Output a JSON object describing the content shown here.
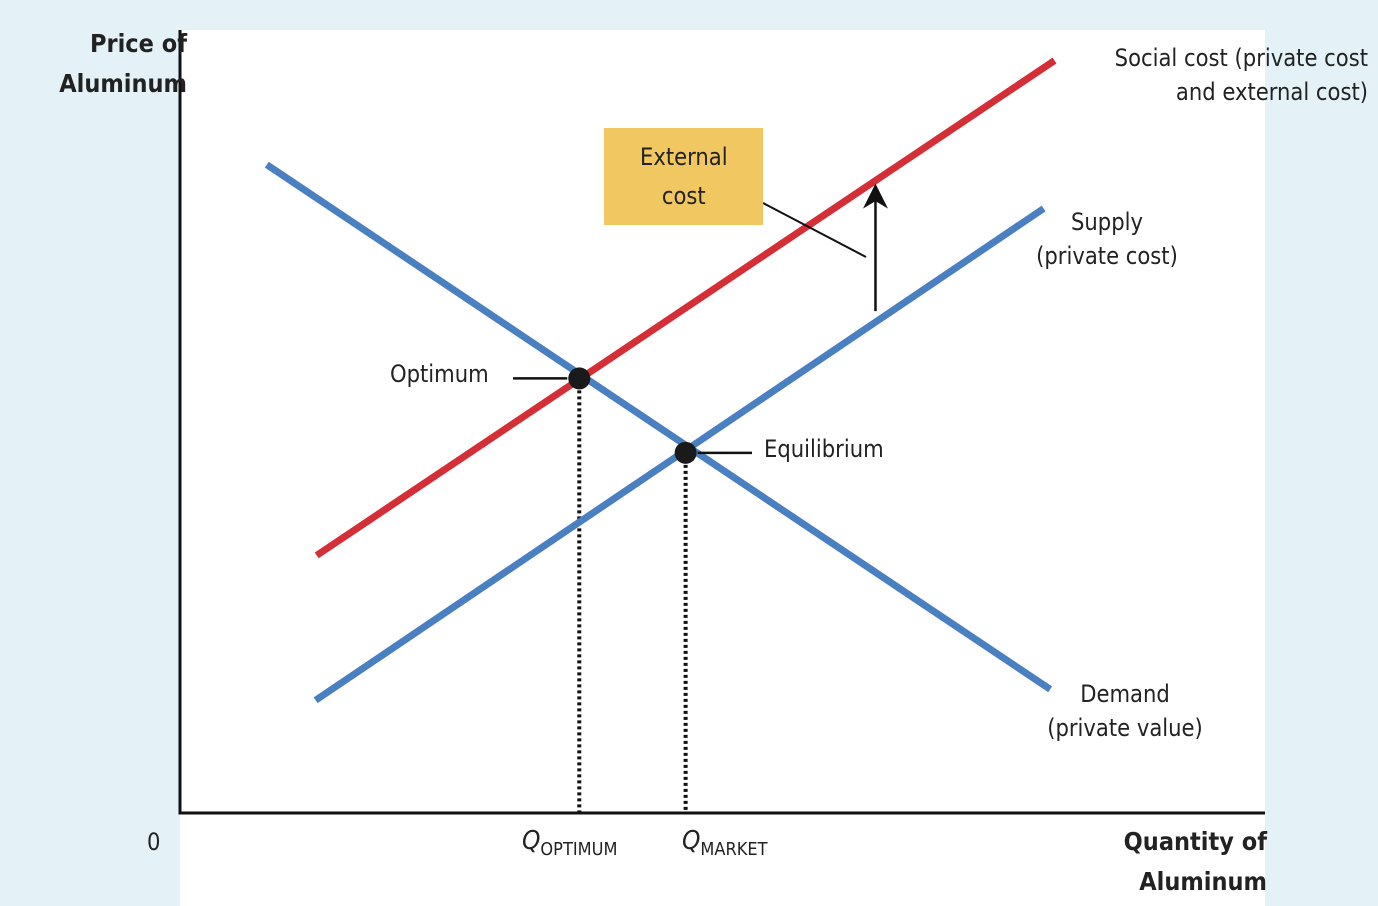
{
  "axes": {
    "y_title_line1": "Price of",
    "y_title_line2": "Aluminum",
    "x_title_line1": "Quantity of",
    "x_title_line2": "Aluminum",
    "origin": "0"
  },
  "labels": {
    "social_cost_line1": "Social cost (private cost",
    "social_cost_line2": "and external cost)",
    "supply_line1": "Supply",
    "supply_line2": "(private cost)",
    "demand_line1": "Demand",
    "demand_line2": "(private value)",
    "external_cost_line1": "External",
    "external_cost_line2": "cost",
    "optimum": "Optimum",
    "equilibrium": "Equilibrium",
    "q_optimum_main": "Q",
    "q_optimum_sub": "OPTIMUM",
    "q_market_main": "Q",
    "q_market_sub": "MARKET"
  },
  "colors": {
    "supply": "#4a7fc1",
    "demand": "#4a7fc1",
    "social_cost": "#d42e37",
    "external_cost_box": "#f0c760",
    "background": "#e4f2f7"
  },
  "chart_data": {
    "type": "line",
    "xlim": [
      0,
      100
    ],
    "ylim": [
      0,
      100
    ],
    "grid": false,
    "series": [
      {
        "name": "Social cost (private cost and external cost)",
        "points": [
          [
            12.6,
            32.9
          ],
          [
            80.6,
            96.1
          ]
        ]
      },
      {
        "name": "Supply",
        "points": [
          [
            12.5,
            14.4
          ],
          [
            79.6,
            77.2
          ]
        ]
      },
      {
        "name": "Demand",
        "points": [
          [
            8.0,
            82.8
          ],
          [
            80.2,
            15.8
          ]
        ]
      }
    ],
    "points": [
      {
        "name": "Optimum",
        "x": 36.8,
        "y": 55.5
      },
      {
        "name": "Equilibrium",
        "x": 46.6,
        "y": 46.0
      }
    ],
    "x_markers": [
      {
        "label": "QOPTIMUM",
        "x": 36.8
      },
      {
        "label": "QMARKET",
        "x": 46.6
      }
    ],
    "external_cost_arrow": {
      "x": 64.1,
      "from_y": 64.1,
      "to_y": 79.3
    }
  }
}
